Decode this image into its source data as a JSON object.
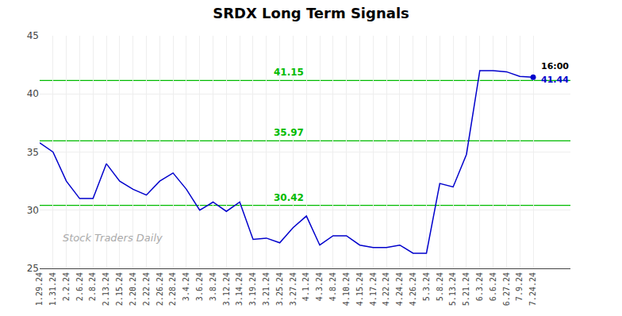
{
  "chart_data": {
    "type": "line",
    "title": "SRDX Long Term Signals",
    "categories": [
      "1.29.24",
      "1.31.24",
      "2.2.24",
      "2.6.24",
      "2.8.24",
      "2.13.24",
      "2.15.24",
      "2.20.24",
      "2.22.24",
      "2.26.24",
      "2.28.24",
      "3.4.24",
      "3.6.24",
      "3.8.24",
      "3.12.24",
      "3.14.24",
      "3.19.24",
      "3.21.24",
      "3.25.24",
      "3.27.24",
      "4.1.24",
      "4.3.24",
      "4.8.24",
      "4.10.24",
      "4.15.24",
      "4.17.24",
      "4.22.24",
      "4.24.24",
      "4.26.24",
      "5.3.24",
      "5.8.24",
      "5.13.24",
      "5.21.24",
      "6.3.24",
      "6.6.24",
      "6.27.24",
      "7.9.24",
      "7.24.24"
    ],
    "values": [
      35.8,
      35.0,
      32.5,
      31.0,
      31.0,
      34.0,
      32.5,
      31.8,
      31.3,
      32.5,
      33.2,
      31.8,
      30.0,
      30.7,
      29.9,
      30.7,
      27.5,
      27.6,
      27.2,
      28.5,
      29.5,
      27.0,
      27.8,
      27.8,
      27.0,
      26.8,
      26.8,
      27.0,
      26.3,
      26.3,
      32.3,
      32.0,
      34.8,
      42.0,
      42.0,
      41.9,
      41.5,
      41.44
    ],
    "color": "#0000cc",
    "hlines": [
      {
        "y": 41.15,
        "label": "41.15",
        "color": "#00bb00"
      },
      {
        "y": 35.97,
        "label": "35.97",
        "color": "#00bb00"
      },
      {
        "y": 30.42,
        "label": "30.42",
        "color": "#00bb00"
      }
    ],
    "last_label": "16:00",
    "last_value": "41.44",
    "watermark": "Stock Traders Daily",
    "ylim": [
      25,
      45
    ],
    "yticks": [
      25,
      30,
      35,
      40,
      45
    ],
    "grid": true
  }
}
